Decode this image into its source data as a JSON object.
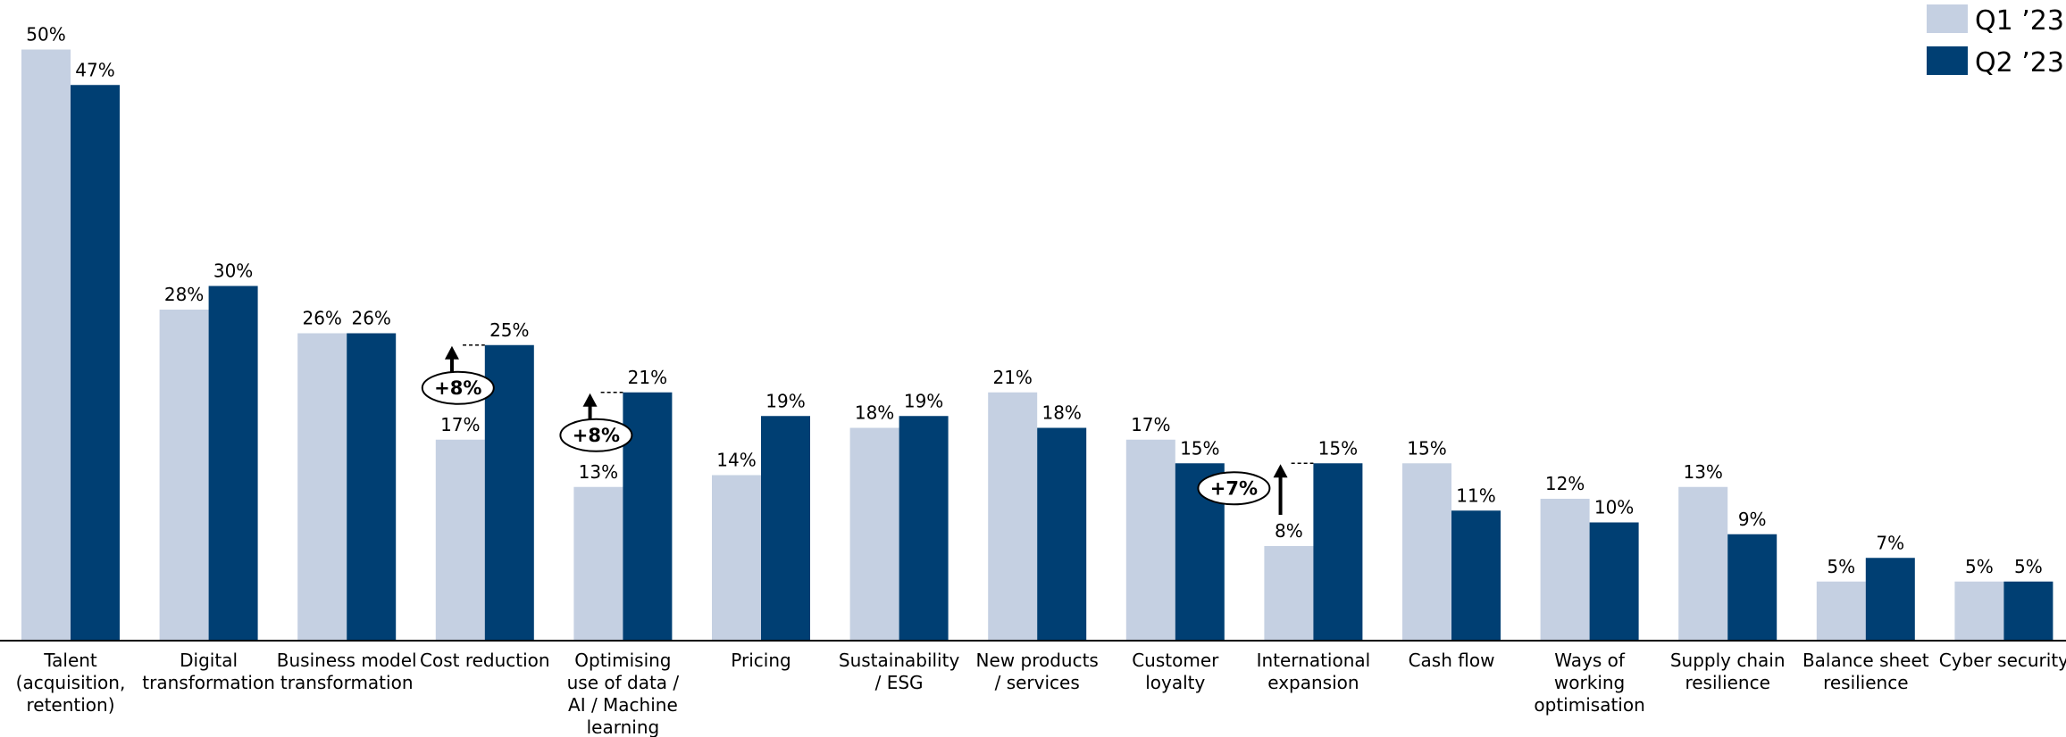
{
  "chart_data": {
    "type": "bar",
    "categories": [
      "Talent (acquisition, retention)",
      "Digital transformation",
      "Business model transformation",
      "Cost reduction",
      "Optimising use of data / AI / Machine learning",
      "Pricing",
      "Sustainability / ESG",
      "New products / services",
      "Customer loyalty",
      "International expansion",
      "Cash flow",
      "Ways of working optimisation",
      "Supply chain resilience",
      "Balance sheet resilience",
      "Cyber security"
    ],
    "category_lines": [
      [
        "Talent",
        "(acquisition,",
        "retention)"
      ],
      [
        "Digital",
        "transformation"
      ],
      [
        "Business model",
        "transformation"
      ],
      [
        "Cost reduction"
      ],
      [
        "Optimising",
        "use of data /",
        "AI / Machine",
        "learning"
      ],
      [
        "Pricing"
      ],
      [
        "Sustainability",
        "/ ESG"
      ],
      [
        "New products",
        "/ services"
      ],
      [
        "Customer",
        "loyalty"
      ],
      [
        "International",
        "expansion"
      ],
      [
        "Cash flow"
      ],
      [
        "Ways of",
        "working",
        "optimisation"
      ],
      [
        "Supply chain",
        "resilience"
      ],
      [
        "Balance sheet",
        "resilience"
      ],
      [
        "Cyber security"
      ]
    ],
    "series": [
      {
        "name": "Q1 ’23",
        "color": "#c5d0e2",
        "values": [
          50,
          28,
          26,
          17,
          13,
          14,
          18,
          21,
          17,
          8,
          15,
          12,
          13,
          5,
          5
        ],
        "labels": [
          "50%",
          "28%",
          "26%",
          "17%",
          "13%",
          "14%",
          "18%",
          "21%",
          "17%",
          "8%",
          "15%",
          "12%",
          "13%",
          "5%",
          "5%"
        ]
      },
      {
        "name": "Q2 ’23",
        "color": "#003f73",
        "values": [
          47,
          30,
          26,
          25,
          21,
          19,
          19,
          18,
          15,
          15,
          11,
          10,
          9,
          7,
          5
        ],
        "labels": [
          "47%",
          "30%",
          "26%",
          "25%",
          "21%",
          "19%",
          "19%",
          "18%",
          "15%",
          "15%",
          "11%",
          "10%",
          "9%",
          "7%",
          "5%"
        ]
      }
    ],
    "annotations": [
      {
        "category_index": 3,
        "text": "+8%"
      },
      {
        "category_index": 4,
        "text": "+8%"
      },
      {
        "category_index": 9,
        "text": "+7%"
      }
    ],
    "ylim": [
      0,
      50
    ],
    "grid": false,
    "legend": "top-right",
    "title": "",
    "xlabel": "",
    "ylabel": ""
  }
}
